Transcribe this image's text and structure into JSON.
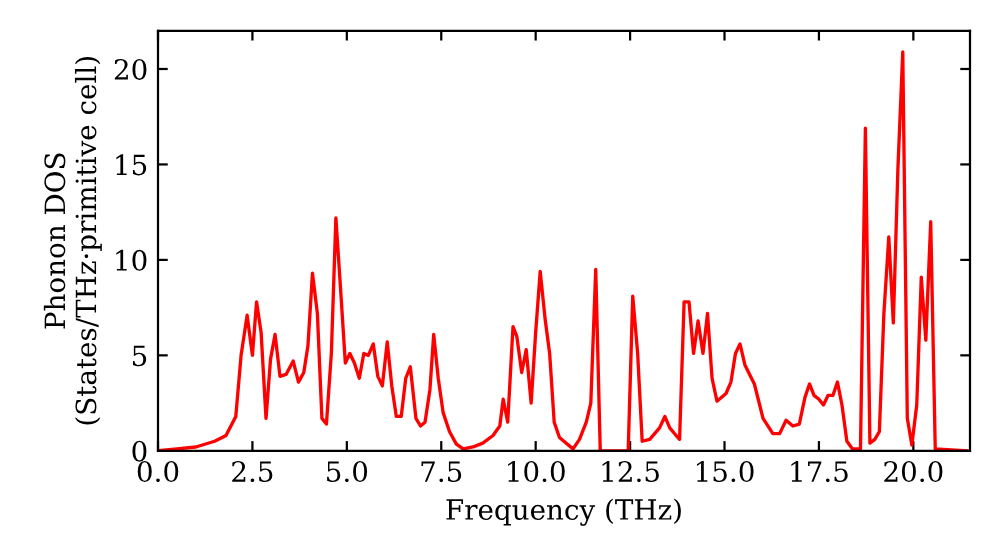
{
  "chart_data": {
    "type": "line",
    "xlabel": "Frequency (THz)",
    "ylabel": "Phonon DOS\n(States/THz·primitive cell)",
    "xlim": [
      0,
      21.5
    ],
    "ylim": [
      0,
      22
    ],
    "xticks": [
      {
        "value": 0,
        "label": "0.0"
      },
      {
        "value": 2.5,
        "label": "2.5"
      },
      {
        "value": 5,
        "label": "5.0"
      },
      {
        "value": 7.5,
        "label": "7.5"
      },
      {
        "value": 10,
        "label": "10.0"
      },
      {
        "value": 12.5,
        "label": "12.5"
      },
      {
        "value": 15,
        "label": "15.0"
      },
      {
        "value": 17.5,
        "label": "17.5"
      },
      {
        "value": 20,
        "label": "20.0"
      }
    ],
    "yticks": [
      0,
      5,
      10,
      15,
      20
    ],
    "grid": false,
    "marker": "none",
    "line_style": "solid",
    "series": [
      {
        "color": "#ff0000",
        "x": [
          0,
          0.5,
          1.0,
          1.5,
          1.8,
          2.06,
          2.2,
          2.36,
          2.5,
          2.61,
          2.73,
          2.86,
          2.98,
          3.1,
          3.23,
          3.39,
          3.58,
          3.72,
          3.86,
          3.97,
          4.09,
          4.22,
          4.34,
          4.46,
          4.59,
          4.71,
          4.83,
          4.96,
          5.08,
          5.2,
          5.33,
          5.45,
          5.57,
          5.7,
          5.82,
          5.94,
          6.07,
          6.19,
          6.31,
          6.44,
          6.56,
          6.68,
          6.83,
          6.95,
          7.07,
          7.2,
          7.3,
          7.42,
          7.55,
          7.72,
          7.9,
          8.08,
          8.34,
          8.6,
          8.87,
          9.05,
          9.14,
          9.26,
          9.4,
          9.5,
          9.63,
          9.75,
          9.88,
          10.0,
          10.12,
          10.25,
          10.37,
          10.49,
          10.63,
          10.81,
          10.99,
          11.16,
          11.34,
          11.46,
          11.59,
          11.71,
          12.45,
          12.57,
          12.7,
          12.82,
          13.02,
          13.28,
          13.42,
          13.55,
          13.72,
          13.81,
          13.93,
          14.06,
          14.18,
          14.3,
          14.43,
          14.55,
          14.67,
          14.8,
          15.04,
          15.17,
          15.29,
          15.41,
          15.54,
          15.79,
          16.02,
          16.28,
          16.46,
          16.63,
          16.81,
          16.98,
          17.13,
          17.25,
          17.37,
          17.5,
          17.62,
          17.74,
          17.87,
          17.99,
          18.11,
          18.24,
          18.39,
          18.6,
          18.73,
          18.85,
          18.98,
          19.1,
          19.22,
          19.35,
          19.47,
          19.59,
          19.72,
          19.84,
          19.96,
          20.09,
          20.21,
          20.33,
          20.46,
          20.58,
          21.4
        ],
        "values": [
          0,
          0.1,
          0.2,
          0.5,
          0.8,
          1.8,
          5.0,
          7.1,
          5.0,
          7.8,
          6.2,
          1.7,
          4.8,
          6.1,
          3.9,
          4.0,
          4.7,
          3.6,
          4.1,
          5.5,
          9.3,
          7.2,
          1.7,
          1.4,
          5.1,
          12.2,
          8.6,
          4.6,
          5.1,
          4.6,
          3.8,
          5.1,
          5.0,
          5.6,
          3.9,
          3.4,
          5.7,
          3.4,
          1.8,
          1.8,
          3.8,
          4.4,
          1.7,
          1.3,
          1.5,
          3.2,
          6.1,
          3.8,
          2.0,
          1.0,
          0.35,
          0.1,
          0.2,
          0.4,
          0.8,
          1.3,
          2.7,
          1.5,
          6.5,
          6.0,
          4.1,
          5.3,
          2.5,
          6.2,
          9.4,
          6.9,
          5.1,
          1.5,
          0.7,
          0.4,
          0.1,
          0.6,
          1.5,
          2.5,
          9.5,
          0,
          0,
          8.1,
          5.1,
          0.5,
          0.6,
          1.2,
          1.8,
          1.2,
          0.8,
          0.6,
          7.8,
          7.8,
          5.1,
          6.8,
          5.1,
          7.2,
          3.8,
          2.6,
          3.0,
          3.6,
          5.1,
          5.6,
          4.5,
          3.5,
          1.7,
          0.9,
          0.9,
          1.6,
          1.3,
          1.4,
          2.8,
          3.5,
          2.9,
          2.7,
          2.4,
          2.9,
          2.9,
          3.6,
          2.4,
          0.5,
          0.1,
          0.1,
          16.9,
          0.4,
          0.6,
          1.0,
          7.2,
          11.2,
          6.7,
          14.7,
          20.9,
          1.7,
          0.3,
          2.4,
          9.1,
          5.8,
          12.0,
          0.1,
          0
        ]
      }
    ]
  }
}
